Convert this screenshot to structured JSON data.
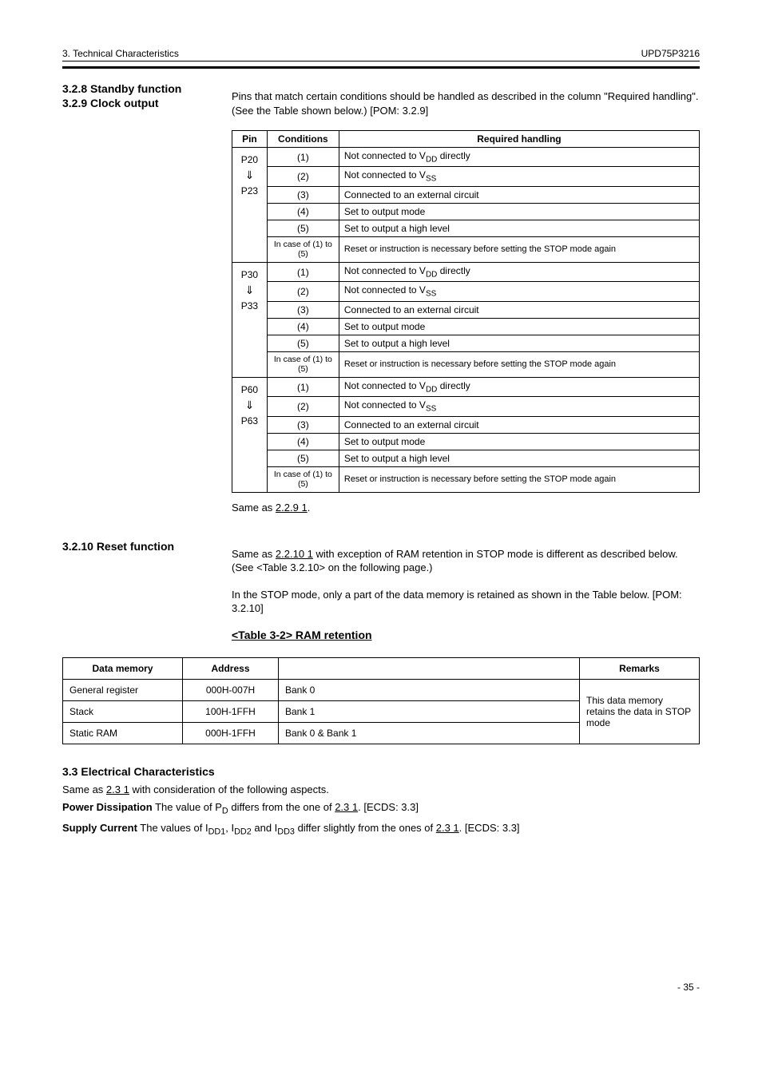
{
  "header": {
    "section": "3. Technical Characteristics",
    "device": "UPD75P3216"
  },
  "section1": {
    "title1": "3.2.8  Standby function",
    "title2": "3.2.9  Clock output",
    "note": "Pins that match certain conditions should be handled as described in the column \"Required handling\". (See the Table shown below.) [POM: 3.2.9]",
    "table": {
      "headers": [
        "Pin",
        "Conditions",
        "Required handling"
      ],
      "groups": [
        {
          "pin_lines": [
            "P20",
            "⇓",
            "P23"
          ],
          "rows": [
            [
              "(1)",
              "Not connected to V<sub>DD</sub> directly"
            ],
            [
              "(2)",
              "Not connected to V<sub>SS</sub>"
            ],
            [
              "(3)",
              "Connected to an external circuit"
            ],
            [
              "(4)",
              "Set to output mode"
            ],
            [
              "(5)",
              "Set to output a high level"
            ],
            [
              "In case of (1) to (5)",
              "Reset or instruction is necessary before setting the STOP mode again"
            ]
          ]
        },
        {
          "pin_lines": [
            "P30",
            "⇓",
            "P33"
          ],
          "rows": [
            [
              "(1)",
              "Not connected to V<sub>DD</sub> directly"
            ],
            [
              "(2)",
              "Not connected to V<sub>SS</sub>"
            ],
            [
              "(3)",
              "Connected to an external circuit"
            ],
            [
              "(4)",
              "Set to output mode"
            ],
            [
              "(5)",
              "Set to output a high level"
            ],
            [
              "In case of (1) to (5)",
              "Reset or instruction is necessary before setting the STOP mode again"
            ]
          ]
        },
        {
          "pin_lines": [
            "P60",
            "⇓",
            "P63"
          ],
          "rows": [
            [
              "(1)",
              "Not connected to V<sub>DD</sub> directly"
            ],
            [
              "(2)",
              "Not connected to V<sub>SS</sub>"
            ],
            [
              "(3)",
              "Connected to an external circuit"
            ],
            [
              "(4)",
              "Set to output mode"
            ],
            [
              "(5)",
              "Set to output a high level"
            ],
            [
              "In case of (1) to (5)",
              "Reset or instruction is necessary before setting the STOP mode again"
            ]
          ]
        }
      ]
    },
    "para2_pre": "Same as ",
    "para2_ref": "2.2.9 1"
  },
  "section2": {
    "title": "3.2.10  Reset function",
    "para_pre": "Same as ",
    "para_ref": "2.2.10 1",
    "para_post": " with exception of RAM retention in STOP mode is different as described below. (See <Table 3.2.10> on the following page.)",
    "para2": "In the STOP mode, only a part of the data memory is retained as shown in the Table below. [POM: 3.2.10]",
    "tableTitle": "<Table 3-2> RAM retention",
    "table": {
      "headers": [
        "Data memory",
        "Address",
        "",
        "Remarks"
      ],
      "rows": [
        [
          "General register",
          "000H-007H",
          "Bank 0"
        ],
        [
          "Stack",
          "100H-1FFH",
          "Bank 1"
        ],
        [
          "Static RAM",
          "000H-1FFH",
          "Bank 0 & Bank 1"
        ]
      ],
      "remarks": "This data memory retains the data in STOP mode"
    }
  },
  "section3": {
    "title": "3.3  Electrical Characteristics",
    "body_pre": "Same as ",
    "body_ref": "2.3 1",
    "body_post": " with consideration of the following aspects.",
    "sub1_label": "Power Dissipation",
    "sub1_body_pre": " The value of P<sub>D</sub> differs from the one of ",
    "sub1_body_ref": "2.3 1",
    "sub1_body_post": ".  [ECDS: 3.3]",
    "sub2_label": "Supply Current",
    "sub2_body_pre": " The values of I<sub>DD1</sub>, I<sub>DD2</sub> and I<sub>DD3</sub> differ slightly from the ones of ",
    "sub2_body_ref": "2.3 1",
    "sub2_body_post": ".  [ECDS: 3.3]"
  },
  "footer": "- 35 -"
}
